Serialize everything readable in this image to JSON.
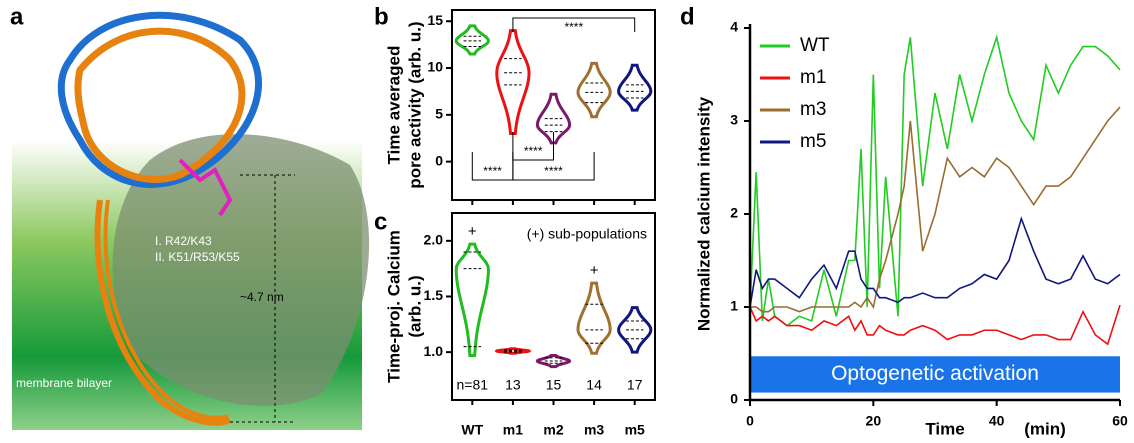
{
  "panel_a": {
    "panel_label": "a",
    "residues_1": "I. R42/K43",
    "residues_2": "II. K51/R53/K55",
    "distance": "~4.7 nm",
    "membrane": "membrane bilayer"
  },
  "chart_data": [
    {
      "type": "violin",
      "panel_label": "b",
      "ylabel": [
        "Time averaged",
        "pore activity (arb. u.)"
      ],
      "categories": [
        "WT",
        "m1",
        "m2",
        "m3",
        "m5"
      ],
      "colors": [
        "#22bb22",
        "#ee1111",
        "#7a1a6a",
        "#a07030",
        "#101880"
      ],
      "stats": [
        {
          "min": 11.5,
          "q1": 12.3,
          "median": 12.9,
          "q3": 13.4,
          "max": 14.5
        },
        {
          "min": 3,
          "q1": 8.2,
          "median": 9.5,
          "q3": 11,
          "max": 14
        },
        {
          "min": 2,
          "q1": 3.2,
          "median": 3.9,
          "q3": 4.6,
          "max": 7.2
        },
        {
          "min": 4.8,
          "q1": 6.3,
          "median": 7.4,
          "q3": 8.4,
          "max": 10.5
        },
        {
          "min": 5.5,
          "q1": 6.8,
          "median": 7.5,
          "q3": 8.2,
          "max": 10.3
        }
      ],
      "ylim": [
        -4.1,
        16.2
      ],
      "yticks": [
        0,
        5,
        10,
        15
      ],
      "significance": [
        "****",
        "****",
        "****",
        "****"
      ]
    },
    {
      "type": "violin",
      "panel_label": "c",
      "ylabel": [
        "Time-proj. Calcium",
        "(arb. u.)"
      ],
      "categories": [
        "WT",
        "m1",
        "m2",
        "m3",
        "m5"
      ],
      "colors": [
        "#22bb22",
        "#ee1111",
        "#7a1a6a",
        "#a07030",
        "#101880"
      ],
      "stats": [
        {
          "min": 0.97,
          "q1": 1.05,
          "median": 1.75,
          "q3": 1.9,
          "max": 1.97
        },
        {
          "min": 0.99,
          "q1": 1.0,
          "median": 1.01,
          "q3": 1.02,
          "max": 1.03
        },
        {
          "min": 0.87,
          "q1": 0.9,
          "median": 0.92,
          "q3": 0.95,
          "max": 0.97
        },
        {
          "min": 0.99,
          "q1": 1.08,
          "median": 1.2,
          "q3": 1.43,
          "max": 1.62
        },
        {
          "min": 1.0,
          "q1": 1.12,
          "median": 1.2,
          "q3": 1.28,
          "max": 1.4
        }
      ],
      "ylim": [
        0.57,
        2.25
      ],
      "yticks": [
        {
          "value": 1,
          "label": "1.0"
        },
        {
          "value": 1.5,
          "label": "1.5"
        },
        {
          "value": 2,
          "label": "2.0"
        }
      ],
      "sub_population_marks": [
        "+",
        "+"
      ],
      "sub_population_note": "(+) sub-populations",
      "n_labels": [
        "n=81",
        "13",
        "15",
        "14",
        "17"
      ]
    },
    {
      "type": "line",
      "panel_label": "d",
      "ylabel": "Normalized calcium intensity",
      "xlabel": [
        "Time",
        "(min)"
      ],
      "x": [
        0,
        1,
        2,
        3,
        4,
        6,
        8,
        10,
        12,
        14,
        16,
        17,
        18,
        19,
        20,
        21,
        22,
        24,
        25,
        26,
        28,
        30,
        32,
        34,
        36,
        38,
        40,
        42,
        44,
        46,
        48,
        50,
        52,
        54,
        56,
        58,
        60
      ],
      "series": [
        {
          "name": "WT",
          "color": "#22cc22",
          "values": [
            1.0,
            2.45,
            0.85,
            1.3,
            0.9,
            0.8,
            0.9,
            0.85,
            1.4,
            0.9,
            1.5,
            1.5,
            2.7,
            1.0,
            3.5,
            1.2,
            2.4,
            0.9,
            3.5,
            3.9,
            2.3,
            3.3,
            2.7,
            3.5,
            3.0,
            3.5,
            3.9,
            3.3,
            3.0,
            2.8,
            3.6,
            3.3,
            3.6,
            3.8,
            3.8,
            3.7,
            3.55
          ]
        },
        {
          "name": "m1",
          "color": "#ee1111",
          "values": [
            1.0,
            0.85,
            0.9,
            0.85,
            0.9,
            0.8,
            0.8,
            0.75,
            0.85,
            0.8,
            0.9,
            0.75,
            0.85,
            0.7,
            0.7,
            0.8,
            0.75,
            0.7,
            0.7,
            0.75,
            0.8,
            0.75,
            0.65,
            0.7,
            0.7,
            0.75,
            0.75,
            0.7,
            0.65,
            0.7,
            0.7,
            0.65,
            0.65,
            0.95,
            0.7,
            0.6,
            1.02
          ]
        },
        {
          "name": "m3",
          "color": "#9c6b30",
          "values": [
            1.0,
            1.0,
            0.95,
            0.95,
            1.0,
            1.0,
            0.95,
            1.0,
            1.0,
            1.0,
            1.0,
            1.05,
            1.0,
            1.1,
            1.0,
            1.3,
            1.5,
            2.0,
            2.3,
            3.0,
            1.6,
            2.0,
            2.6,
            2.4,
            2.5,
            2.4,
            2.6,
            2.5,
            2.3,
            2.1,
            2.3,
            2.3,
            2.4,
            2.6,
            2.8,
            3.0,
            3.15
          ]
        },
        {
          "name": "m5",
          "color": "#101880",
          "values": [
            1.0,
            1.4,
            1.2,
            1.3,
            1.3,
            1.2,
            1.1,
            1.3,
            1.45,
            1.2,
            1.6,
            1.6,
            1.3,
            1.2,
            1.2,
            1.1,
            1.1,
            1.05,
            1.1,
            1.1,
            1.15,
            1.1,
            1.1,
            1.2,
            1.25,
            1.35,
            1.3,
            1.5,
            1.95,
            1.6,
            1.3,
            1.25,
            1.3,
            1.55,
            1.3,
            1.25,
            1.35
          ]
        }
      ],
      "xlim": [
        0,
        60
      ],
      "xticks": [
        0,
        20,
        40,
        60
      ],
      "ylim": [
        0,
        4
      ],
      "yticks": [
        0,
        1,
        2,
        3,
        4
      ],
      "legend": "upper left",
      "annotation": "Optogenetic activation",
      "annotation_color": "#1a73e8"
    }
  ]
}
